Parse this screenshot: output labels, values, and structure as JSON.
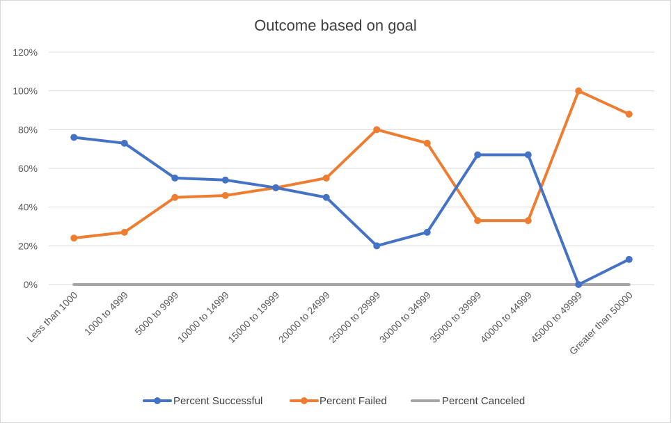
{
  "chart_data": {
    "type": "line",
    "title": "Outcome based on goal",
    "xlabel": "",
    "ylabel": "",
    "categories": [
      "Less than 1000",
      "1000 to 4999",
      "5000 to 9999",
      "10000 to 14999",
      "15000 to 19999",
      "20000 to 24999",
      "25000 to 29999",
      "30000 to 34999",
      "35000 to 39999",
      "40000 to 44999",
      "45000 to 49999",
      "Greater than 50000"
    ],
    "ylim": [
      0,
      1.2
    ],
    "yticks": [
      0,
      0.2,
      0.4,
      0.6,
      0.8,
      1.0,
      1.2
    ],
    "ytick_labels": [
      "0%",
      "20%",
      "40%",
      "60%",
      "80%",
      "100%",
      "120%"
    ],
    "grid": true,
    "legend_position": "bottom",
    "series": [
      {
        "name": "Percent Successful",
        "color": "#4472c4",
        "markers": true,
        "values": [
          0.76,
          0.73,
          0.55,
          0.54,
          0.5,
          0.45,
          0.2,
          0.27,
          0.67,
          0.67,
          0.0,
          0.13
        ]
      },
      {
        "name": "Percent Failed",
        "color": "#ed7d31",
        "markers": true,
        "values": [
          0.24,
          0.27,
          0.45,
          0.46,
          0.5,
          0.55,
          0.8,
          0.73,
          0.33,
          0.33,
          1.0,
          0.88
        ]
      },
      {
        "name": "Percent Canceled",
        "color": "#a5a5a5",
        "markers": false,
        "values": [
          0,
          0,
          0,
          0,
          0,
          0,
          0,
          0,
          0,
          0,
          0,
          0
        ]
      }
    ]
  }
}
